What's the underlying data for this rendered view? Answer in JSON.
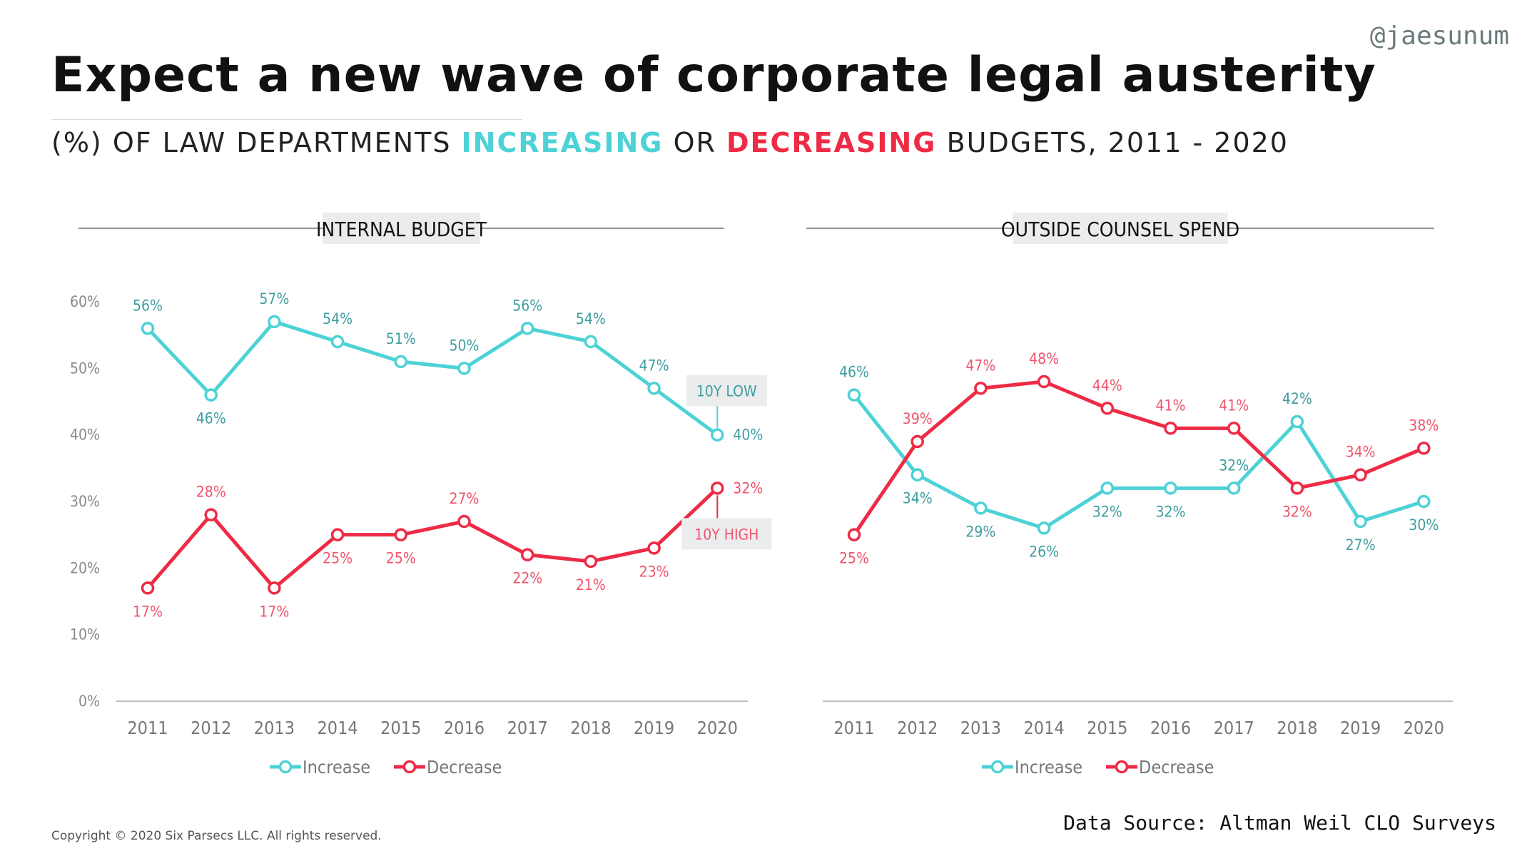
{
  "handle": "@jaesunum",
  "title": "Expect a new wave of corporate legal austerity",
  "subtitle": {
    "prefix": "(%) OF LAW DEPARTMENTS ",
    "increasing": "INCREASING",
    "middle": " OR ",
    "decreasing": "DECREASING",
    "suffix": " BUDGETS, 2011 - 2020"
  },
  "colors": {
    "increase": "#4dd2d6",
    "decrease": "#ee2b45",
    "increase_label": "#3f9ea0",
    "decrease_label": "#f0556c",
    "axis_text": "#8a8a8a",
    "panel_title_bg": "#ebeced"
  },
  "chart_data": [
    {
      "type": "line",
      "title": "INTERNAL BUDGET",
      "categories": [
        "2011",
        "2012",
        "2013",
        "2014",
        "2015",
        "2016",
        "2017",
        "2018",
        "2019",
        "2020"
      ],
      "ylim": [
        0,
        60
      ],
      "yticks": [
        0,
        10,
        20,
        30,
        40,
        50,
        60
      ],
      "ytick_labels": [
        "0%",
        "10%",
        "20%",
        "30%",
        "40%",
        "50%",
        "60%"
      ],
      "grid": false,
      "legend_position": "bottom",
      "series": [
        {
          "name": "Increase",
          "values": [
            56,
            46,
            57,
            54,
            51,
            50,
            56,
            54,
            47,
            40
          ],
          "labels": [
            "56%",
            "46%",
            "57%",
            "54%",
            "51%",
            "50%",
            "56%",
            "54%",
            "47%",
            "40%"
          ]
        },
        {
          "name": "Decrease",
          "values": [
            17,
            28,
            17,
            25,
            25,
            27,
            22,
            21,
            23,
            32
          ],
          "labels": [
            "17%",
            "28%",
            "17%",
            "25%",
            "25%",
            "27%",
            "22%",
            "21%",
            "23%",
            "32%"
          ]
        }
      ],
      "annotations": [
        {
          "text": "10Y LOW",
          "series": 0,
          "index": 9
        },
        {
          "text": "10Y HIGH",
          "series": 1,
          "index": 9
        }
      ]
    },
    {
      "type": "line",
      "title": "OUTSIDE COUNSEL SPEND",
      "categories": [
        "2011",
        "2012",
        "2013",
        "2014",
        "2015",
        "2016",
        "2017",
        "2018",
        "2019",
        "2020"
      ],
      "ylim": [
        0,
        60
      ],
      "grid": false,
      "legend_position": "bottom",
      "series": [
        {
          "name": "Increase",
          "values": [
            46,
            34,
            29,
            26,
            32,
            32,
            32,
            42,
            27,
            30
          ],
          "labels": [
            "46%",
            "34%",
            "29%",
            "26%",
            "32%",
            "32%",
            "32%",
            "42%",
            "27%",
            "30%"
          ]
        },
        {
          "name": "Decrease",
          "values": [
            25,
            39,
            47,
            48,
            44,
            41,
            41,
            32,
            34,
            38
          ],
          "labels": [
            "25%",
            "39%",
            "47%",
            "48%",
            "44%",
            "41%",
            "41%",
            "32%",
            "34%",
            "38%"
          ]
        }
      ]
    }
  ],
  "footer": {
    "copyright": "Copyright © 2020 Six Parsecs LLC. All rights reserved.",
    "source": "Data Source: Altman Weil CLO Surveys"
  }
}
